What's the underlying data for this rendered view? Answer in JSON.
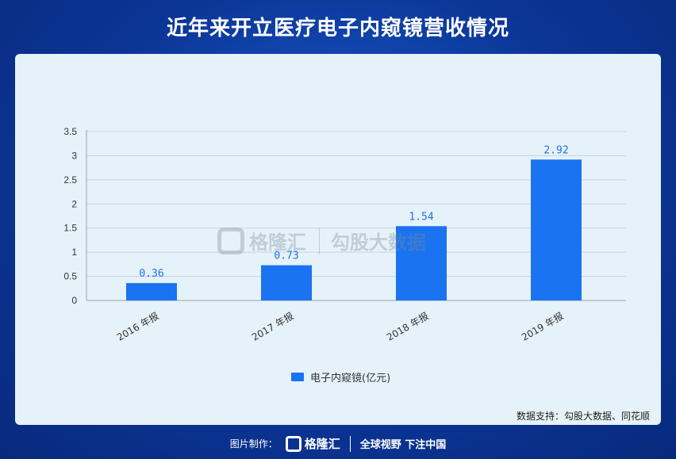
{
  "header": {
    "title": "近年来开立医疗电子内窥镜营收情况"
  },
  "watermark": {
    "brand": "格隆汇",
    "brand2": "勾股大数据"
  },
  "chart_data": {
    "type": "bar",
    "categories": [
      "2016 年报",
      "2017 年报",
      "2018 年报",
      "2019 年报"
    ],
    "series": [
      {
        "name": "电子内窥镜(亿元)",
        "values": [
          0.36,
          0.73,
          1.54,
          2.92
        ],
        "color": "#1a73f0"
      }
    ],
    "data_labels": [
      "0.36",
      "0.73",
      "1.54",
      "2.92"
    ],
    "yticks": [
      "0",
      "0.5",
      "1",
      "1.5",
      "2",
      "2.5",
      "3",
      "3.5"
    ],
    "ylim": [
      0,
      3.5
    ],
    "grid": true,
    "legend": "bottom-center"
  },
  "source": "数据支持：勾股大数据、同花顺",
  "footer": {
    "credit": "图片制作：",
    "brand": "格隆汇",
    "slogan": "全球视野 下注中国"
  }
}
